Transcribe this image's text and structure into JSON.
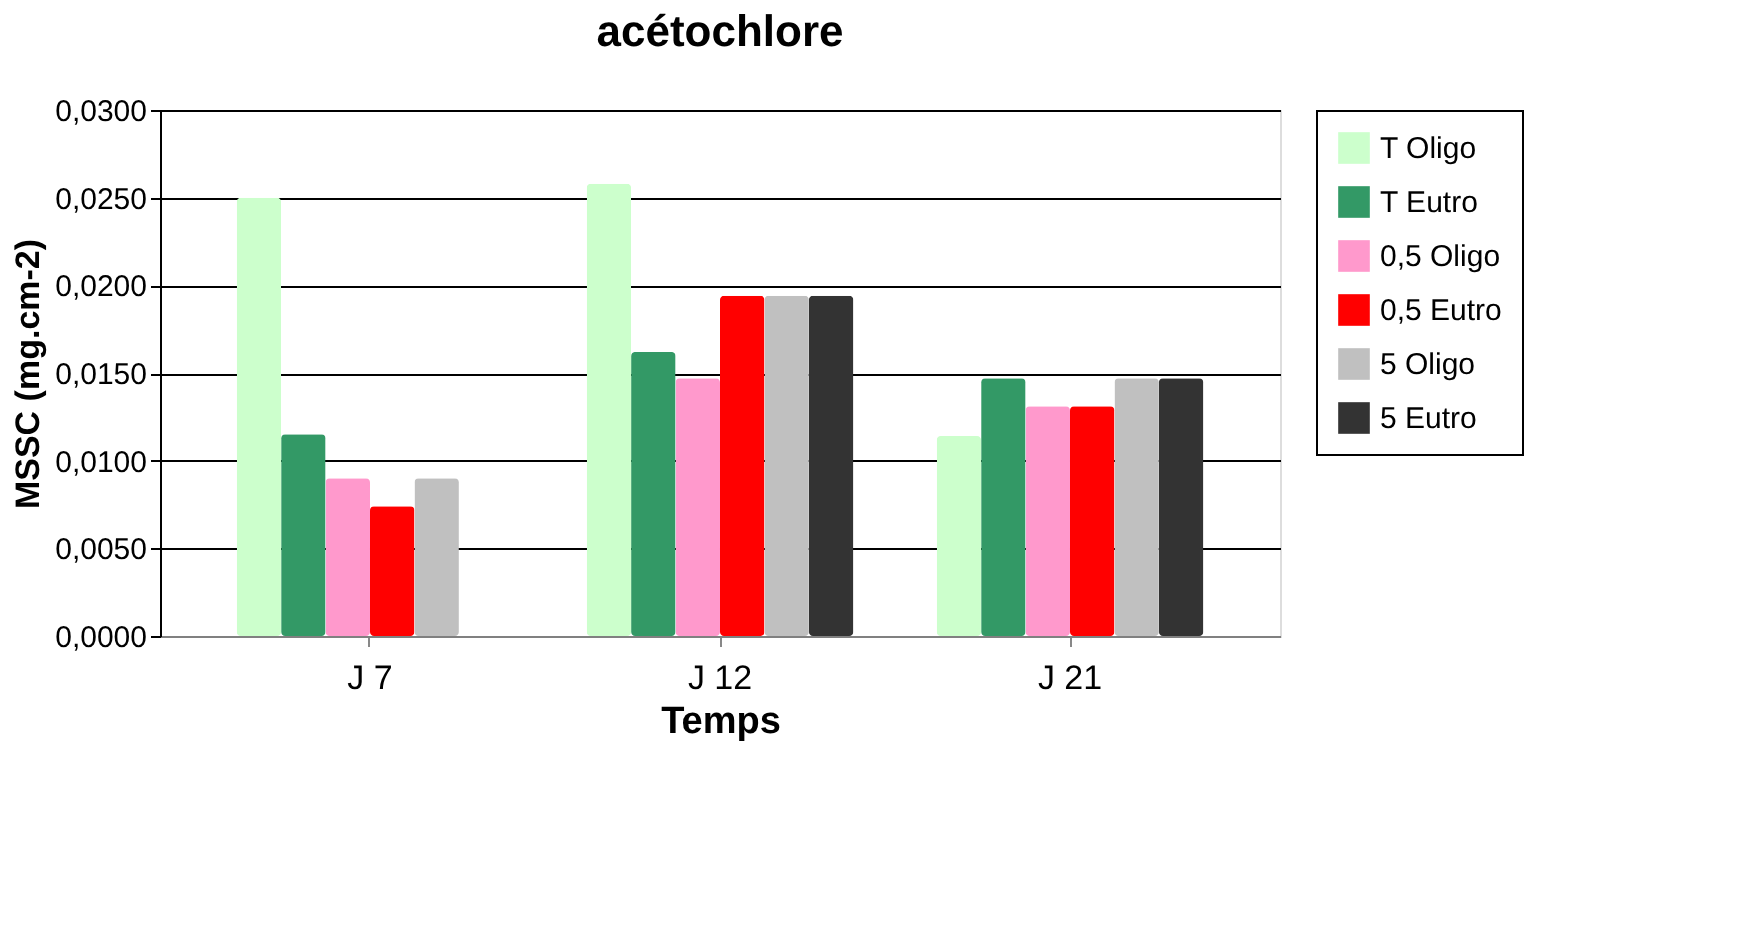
{
  "chart_data": {
    "type": "bar",
    "title": "acétochlore",
    "xlabel": "Temps",
    "ylabel": "MSSC (mg.cm-2)",
    "categories": [
      "J 7",
      "J 12",
      "J 21"
    ],
    "series": [
      {
        "name": "T Oligo",
        "color": "#ccffcc",
        "values": [
          0.025,
          0.0258,
          0.0114
        ]
      },
      {
        "name": "T Eutro",
        "color": "#339966",
        "values": [
          0.0115,
          0.0162,
          0.0147
        ]
      },
      {
        "name": "0,5 Oligo",
        "color": "#ff99cc",
        "values": [
          0.009,
          0.0147,
          0.0131
        ]
      },
      {
        "name": "0,5 Eutro",
        "color": "#ff0000",
        "values": [
          0.0074,
          0.0194,
          0.0131
        ]
      },
      {
        "name": "5 Oligo",
        "color": "#c0c0c0",
        "values": [
          0.009,
          0.0194,
          0.0147
        ]
      },
      {
        "name": "5 Eutro",
        "color": "#333333",
        "values": [
          null,
          0.0194,
          0.0147
        ]
      }
    ],
    "ylim": [
      0,
      0.03
    ],
    "yticks": [
      {
        "value": 0,
        "label": "0,0000"
      },
      {
        "value": 0.005,
        "label": "0,0050"
      },
      {
        "value": 0.01,
        "label": "0,0100"
      },
      {
        "value": 0.015,
        "label": "0,0150"
      },
      {
        "value": 0.02,
        "label": "0,0200"
      },
      {
        "value": 0.025,
        "label": "0,0250"
      },
      {
        "value": 0.03,
        "label": "0,0300"
      }
    ],
    "grid": "y",
    "legend": "right"
  }
}
